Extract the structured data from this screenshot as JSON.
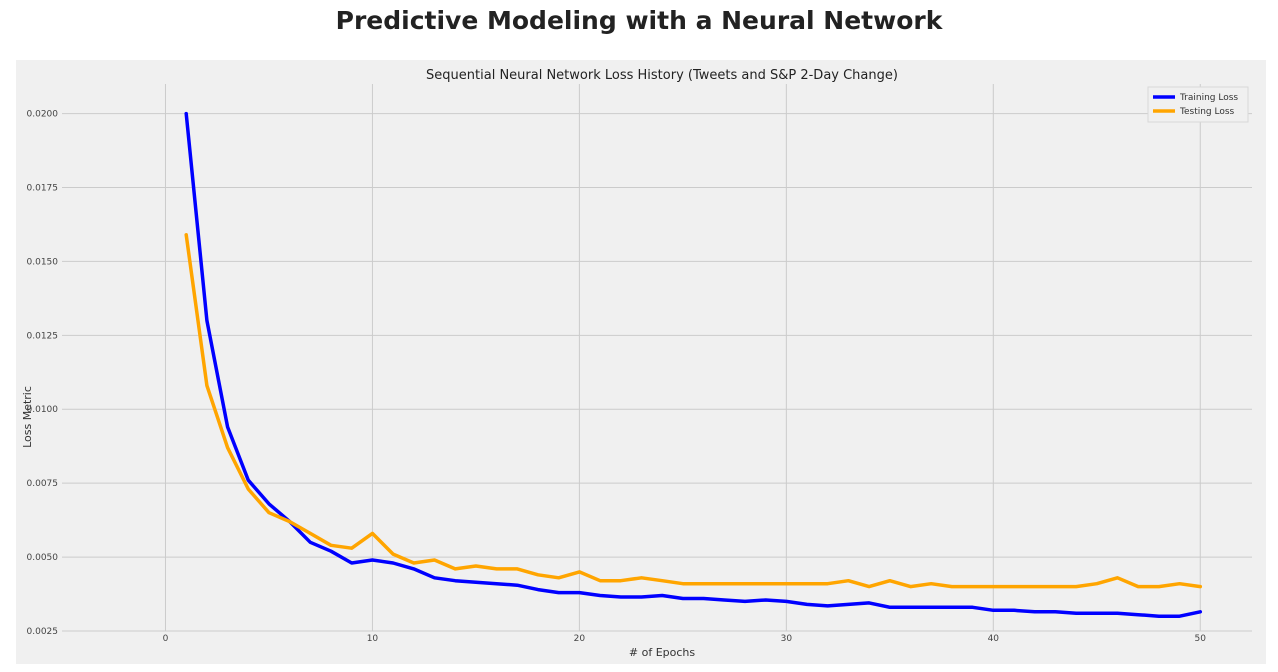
{
  "page": {
    "title": "Predictive Modeling with a Neural Network"
  },
  "chart_data": {
    "type": "line",
    "title": "Sequential Neural Network Loss History (Tweets and S&P 2-Day Change)",
    "xlabel": "# of Epochs",
    "ylabel": "Loss Metric",
    "xlim": [
      -5,
      52.5
    ],
    "ylim": [
      0.0025,
      0.021
    ],
    "xticks": [
      0,
      10,
      20,
      30,
      40,
      50
    ],
    "xtick_labels": [
      "0",
      "10",
      "20",
      "30",
      "40",
      "50"
    ],
    "yticks": [
      0.0025,
      0.005,
      0.0075,
      0.01,
      0.0125,
      0.015,
      0.0175,
      0.02
    ],
    "ytick_labels": [
      "0.0025",
      "0.0050",
      "0.0075",
      "0.0100",
      "0.0125",
      "0.0150",
      "0.0175",
      "0.0200"
    ],
    "grid": true,
    "legend_position": "top-right",
    "background": "#f0f0f0",
    "x": [
      1,
      2,
      3,
      4,
      5,
      6,
      7,
      8,
      9,
      10,
      11,
      12,
      13,
      14,
      15,
      16,
      17,
      18,
      19,
      20,
      21,
      22,
      23,
      24,
      25,
      26,
      27,
      28,
      29,
      30,
      31,
      32,
      33,
      34,
      35,
      36,
      37,
      38,
      39,
      40,
      41,
      42,
      43,
      44,
      45,
      46,
      47,
      48,
      49,
      50
    ],
    "series": [
      {
        "name": "Training Loss",
        "color": "#0000ff",
        "values": [
          0.02,
          0.013,
          0.0094,
          0.0076,
          0.0068,
          0.0062,
          0.0055,
          0.0052,
          0.0048,
          0.0049,
          0.0048,
          0.0046,
          0.0043,
          0.0042,
          0.00415,
          0.0041,
          0.00405,
          0.0039,
          0.0038,
          0.0038,
          0.0037,
          0.00365,
          0.00365,
          0.0037,
          0.0036,
          0.0036,
          0.00355,
          0.0035,
          0.00355,
          0.0035,
          0.0034,
          0.00335,
          0.0034,
          0.00345,
          0.0033,
          0.0033,
          0.0033,
          0.0033,
          0.0033,
          0.0032,
          0.0032,
          0.00315,
          0.00315,
          0.0031,
          0.0031,
          0.0031,
          0.00305,
          0.003,
          0.003,
          0.00315
        ]
      },
      {
        "name": "Testing Loss",
        "color": "#ffa500",
        "values": [
          0.0159,
          0.0108,
          0.0087,
          0.0073,
          0.0065,
          0.0062,
          0.0058,
          0.0054,
          0.0053,
          0.0058,
          0.0051,
          0.0048,
          0.0049,
          0.0046,
          0.0047,
          0.0046,
          0.0046,
          0.0044,
          0.0043,
          0.0045,
          0.0042,
          0.0042,
          0.0043,
          0.0042,
          0.0041,
          0.0041,
          0.0041,
          0.0041,
          0.0041,
          0.0041,
          0.0041,
          0.0041,
          0.0042,
          0.004,
          0.0042,
          0.004,
          0.0041,
          0.004,
          0.004,
          0.004,
          0.004,
          0.004,
          0.004,
          0.004,
          0.0041,
          0.0043,
          0.004,
          0.004,
          0.0041,
          0.004
        ]
      }
    ]
  }
}
